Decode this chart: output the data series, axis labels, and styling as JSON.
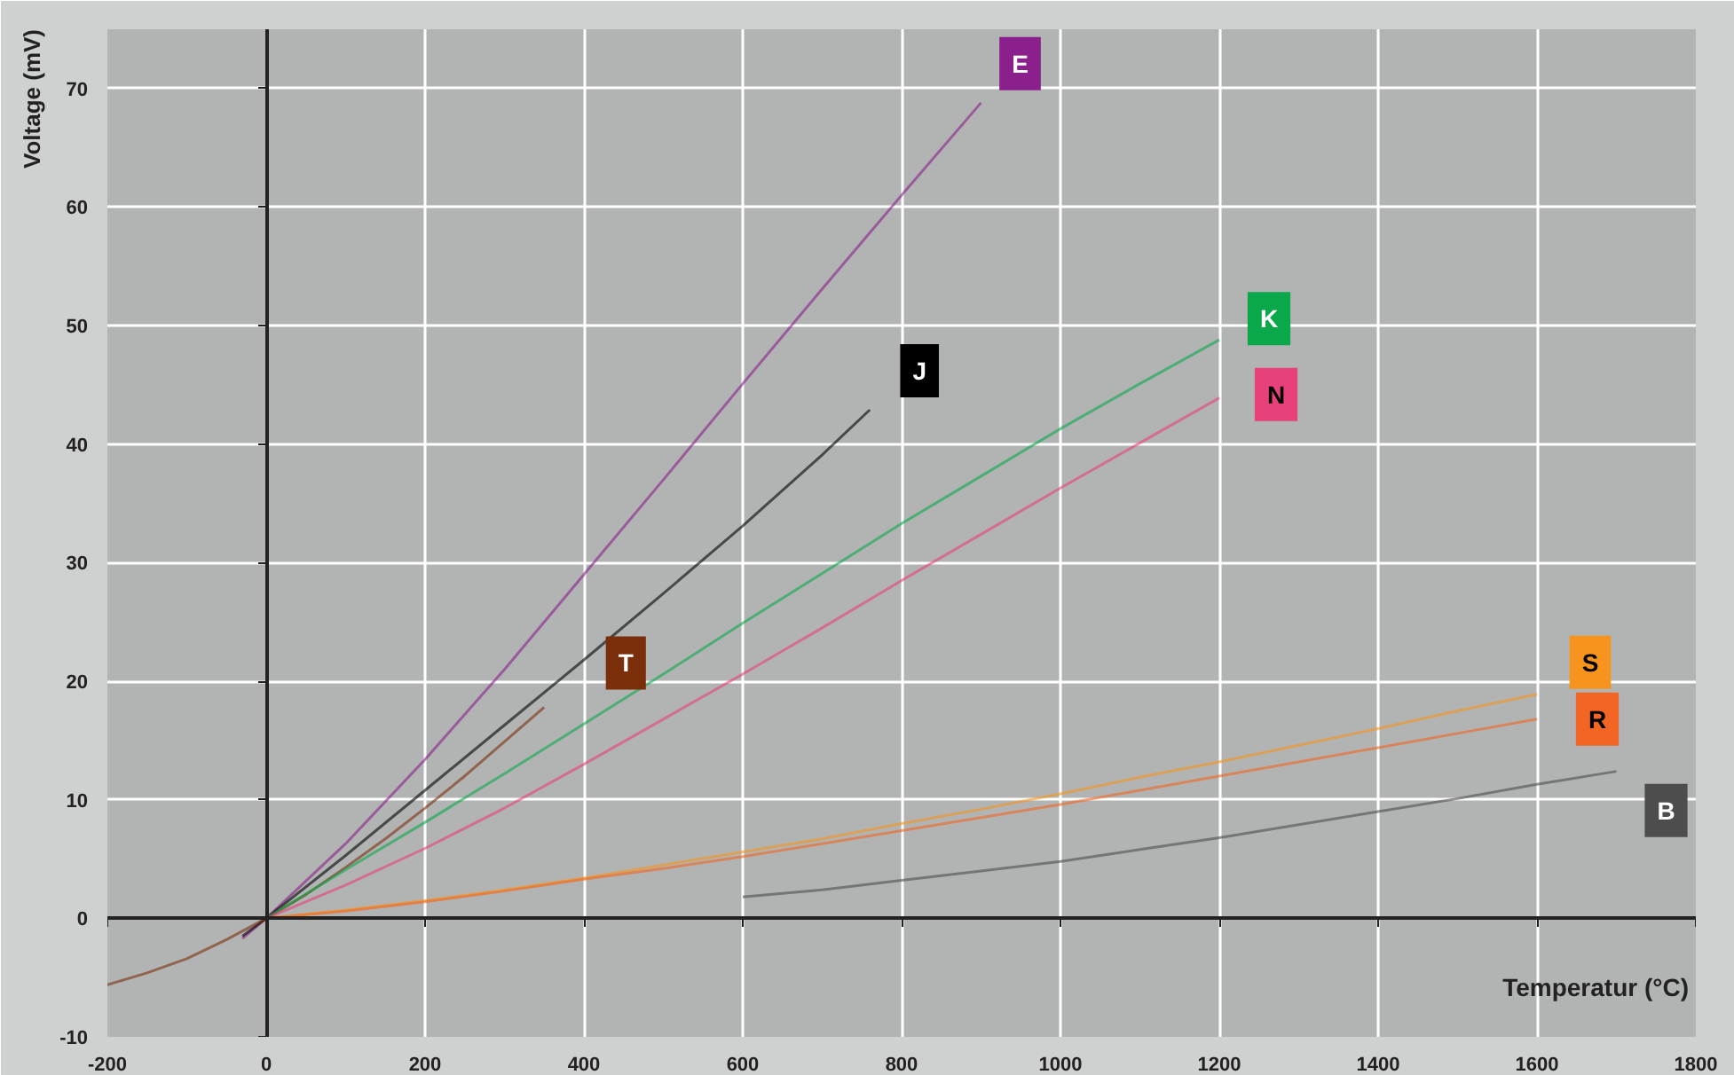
{
  "chart_data": {
    "type": "line",
    "xlabel": "Temperatur (°C)",
    "ylabel": "Voltage (mV)",
    "xlim": [
      -200,
      1800
    ],
    "ylim": [
      -10,
      75
    ],
    "xticks": [
      -200,
      0,
      200,
      400,
      600,
      800,
      1000,
      1200,
      1400,
      1600,
      1800
    ],
    "yticks": [
      -10,
      0,
      10,
      20,
      30,
      40,
      50,
      60,
      70
    ],
    "grid": true,
    "legend": false,
    "series": [
      {
        "name": "E",
        "color": "#8b1f8b",
        "x": [
          -30,
          0,
          100,
          200,
          300,
          400,
          500,
          600,
          700,
          800,
          900
        ],
        "values": [
          -1.7,
          0,
          6.3,
          13.4,
          21.0,
          29.0,
          37.0,
          45.1,
          53.1,
          61.0,
          68.8
        ]
      },
      {
        "name": "J",
        "color": "#000000",
        "x": [
          -30,
          0,
          100,
          200,
          300,
          400,
          500,
          600,
          700,
          760
        ],
        "values": [
          -1.5,
          0,
          5.3,
          10.8,
          16.3,
          21.8,
          27.4,
          33.1,
          39.1,
          42.9
        ]
      },
      {
        "name": "T",
        "color": "#7a2e0a",
        "x": [
          -200,
          -150,
          -100,
          -50,
          0,
          50,
          100,
          150,
          200,
          250,
          300,
          350
        ],
        "values": [
          -5.6,
          -4.6,
          -3.4,
          -1.8,
          0,
          2.0,
          4.3,
          6.7,
          9.3,
          12.0,
          14.9,
          17.8
        ]
      },
      {
        "name": "K",
        "color": "#0aa84a",
        "x": [
          0,
          100,
          200,
          300,
          400,
          500,
          600,
          700,
          800,
          900,
          1000,
          1100,
          1200
        ],
        "values": [
          0,
          4.1,
          8.1,
          12.2,
          16.4,
          20.6,
          24.9,
          29.1,
          33.3,
          37.3,
          41.3,
          45.1,
          48.8
        ]
      },
      {
        "name": "N",
        "color": "#e8407a",
        "x": [
          0,
          100,
          200,
          300,
          400,
          500,
          600,
          700,
          800,
          900,
          1000,
          1100,
          1200
        ],
        "values": [
          0,
          2.8,
          5.9,
          9.3,
          13.0,
          16.8,
          20.6,
          24.5,
          28.5,
          32.4,
          36.3,
          40.1,
          43.9
        ]
      },
      {
        "name": "S",
        "color": "#f7941d",
        "x": [
          0,
          100,
          200,
          300,
          400,
          500,
          600,
          700,
          800,
          900,
          1000,
          1100,
          1200,
          1300,
          1400,
          1500,
          1600
        ],
        "values": [
          0,
          0.7,
          1.5,
          2.4,
          3.4,
          4.5,
          5.6,
          6.7,
          8.0,
          9.2,
          10.5,
          11.9,
          13.2,
          14.6,
          16.0,
          17.5,
          18.9
        ]
      },
      {
        "name": "R",
        "color": "#f26522",
        "x": [
          0,
          100,
          200,
          300,
          400,
          500,
          600,
          700,
          800,
          900,
          1000,
          1100,
          1200,
          1300,
          1400,
          1500,
          1600
        ],
        "values": [
          0,
          0.6,
          1.4,
          2.3,
          3.3,
          4.2,
          5.2,
          6.3,
          7.4,
          8.5,
          9.6,
          10.8,
          12.0,
          13.2,
          14.4,
          15.6,
          16.8
        ]
      },
      {
        "name": "B",
        "color": "#4d4d4d",
        "x": [
          600,
          700,
          800,
          900,
          1000,
          1100,
          1200,
          1300,
          1400,
          1500,
          1600,
          1700
        ],
        "values": [
          1.8,
          2.4,
          3.2,
          4.0,
          4.8,
          5.8,
          6.8,
          7.9,
          9.0,
          10.1,
          11.3,
          12.4
        ]
      }
    ]
  }
}
